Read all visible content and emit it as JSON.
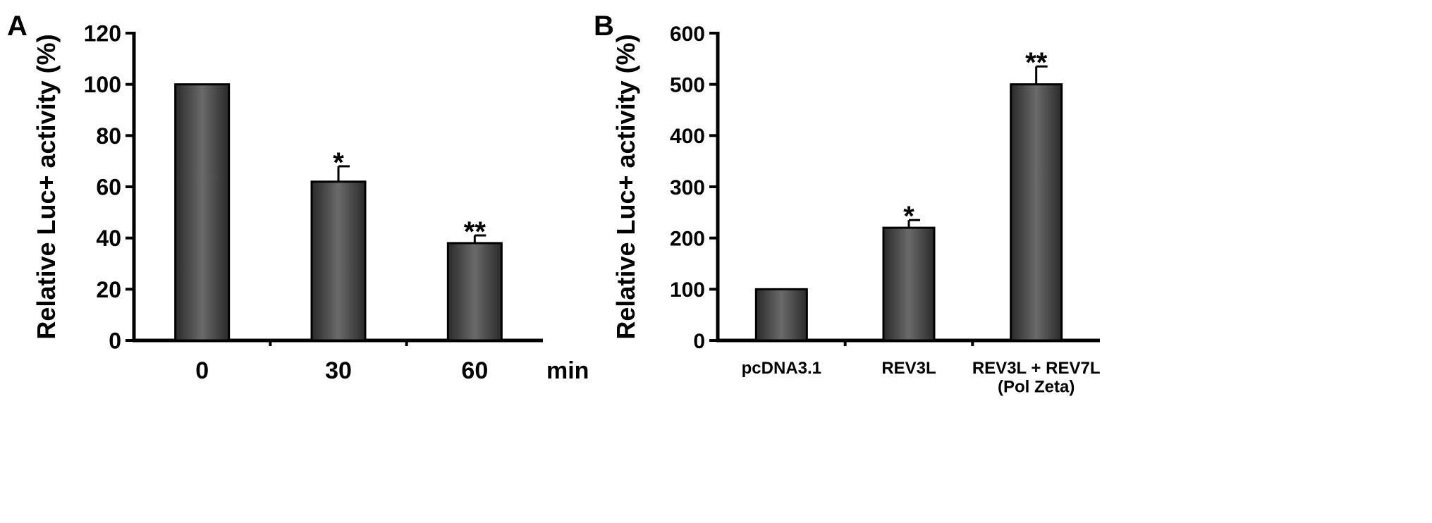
{
  "chart_data": [
    {
      "panel_label": "A",
      "type": "bar",
      "categories": [
        "0",
        "30",
        "60"
      ],
      "values": [
        100,
        62,
        38
      ],
      "errors": [
        0,
        6,
        3
      ],
      "significance": [
        "",
        "*",
        "**"
      ],
      "ylabel": "Relative Luc+ activity (%)",
      "xunit": "min",
      "ylim": [
        0,
        120
      ],
      "yticks": [
        0,
        20,
        40,
        60,
        80,
        100,
        120
      ]
    },
    {
      "panel_label": "B",
      "type": "bar",
      "categories": [
        "pcDNA3.1",
        "REV3L",
        "REV3L + REV7L\n(Pol Zeta)"
      ],
      "values": [
        100,
        220,
        500
      ],
      "errors": [
        0,
        15,
        35
      ],
      "significance": [
        "",
        "*",
        "**"
      ],
      "ylabel": "Relative Luc+ activity (%)",
      "xunit": "",
      "ylim": [
        0,
        600
      ],
      "yticks": [
        0,
        100,
        200,
        300,
        400,
        500,
        600
      ]
    }
  ]
}
